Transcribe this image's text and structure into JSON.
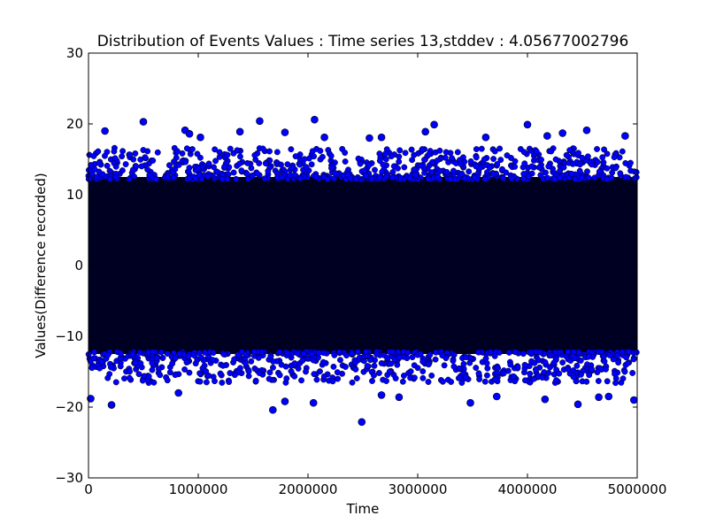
{
  "chart_data": {
    "type": "scatter",
    "title": "Distribution of Events Values : Time series 13,stddev : 4.05677002796",
    "xlabel": "Time",
    "ylabel": "Values(Difference recorded)",
    "xlim": [
      0,
      5000000
    ],
    "ylim": [
      -30,
      30
    ],
    "xticks": [
      0,
      1000000,
      2000000,
      3000000,
      4000000,
      5000000
    ],
    "yticks": [
      -30,
      -20,
      -10,
      0,
      10,
      20,
      30
    ],
    "xtick_labels": [
      "0",
      "1000000",
      "2000000",
      "3000000",
      "4000000",
      "5000000"
    ],
    "ytick_labels": [
      "−30",
      "−20",
      "−10",
      "0",
      "10",
      "20",
      "30"
    ],
    "grid": false,
    "legend": "none",
    "marker_color": "#0000ff",
    "dense_band_color": "#000022",
    "dense_band": {
      "x": [
        0,
        5000000
      ],
      "y": [
        -12.5,
        12.5
      ]
    },
    "outliers": [
      {
        "x": 150000,
        "y": 19
      },
      {
        "x": 500000,
        "y": 20.3
      },
      {
        "x": 880000,
        "y": 19.1
      },
      {
        "x": 920000,
        "y": 18.6
      },
      {
        "x": 1020000,
        "y": 18.1
      },
      {
        "x": 1380000,
        "y": 18.9
      },
      {
        "x": 1560000,
        "y": 20.4
      },
      {
        "x": 1790000,
        "y": 18.8
      },
      {
        "x": 2060000,
        "y": 20.6
      },
      {
        "x": 2150000,
        "y": 18.1
      },
      {
        "x": 2560000,
        "y": 18.0
      },
      {
        "x": 2670000,
        "y": 18.1
      },
      {
        "x": 3070000,
        "y": 18.9
      },
      {
        "x": 3150000,
        "y": 19.9
      },
      {
        "x": 3620000,
        "y": 18.1
      },
      {
        "x": 4000000,
        "y": 19.9
      },
      {
        "x": 4180000,
        "y": 18.3
      },
      {
        "x": 4320000,
        "y": 18.7
      },
      {
        "x": 4540000,
        "y": 19.1
      },
      {
        "x": 4890000,
        "y": 18.3
      },
      {
        "x": 20000,
        "y": -18.8
      },
      {
        "x": 210000,
        "y": -19.7
      },
      {
        "x": 820000,
        "y": -18.0
      },
      {
        "x": 1680000,
        "y": -20.4
      },
      {
        "x": 1790000,
        "y": -19.2
      },
      {
        "x": 2050000,
        "y": -19.4
      },
      {
        "x": 2490000,
        "y": -22.1
      },
      {
        "x": 2670000,
        "y": -18.3
      },
      {
        "x": 2830000,
        "y": -18.6
      },
      {
        "x": 3480000,
        "y": -19.4
      },
      {
        "x": 3720000,
        "y": -18.5
      },
      {
        "x": 4160000,
        "y": -18.9
      },
      {
        "x": 4460000,
        "y": -19.6
      },
      {
        "x": 4650000,
        "y": -18.6
      },
      {
        "x": 4740000,
        "y": -18.5
      },
      {
        "x": 4970000,
        "y": -19.0
      }
    ]
  }
}
